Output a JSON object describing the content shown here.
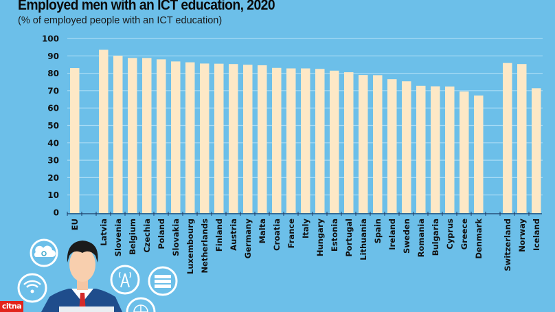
{
  "chart_data": {
    "type": "bar",
    "title": "Employed men with an ICT education, 2020",
    "subtitle": "(% of employed people with an ICT education)",
    "xlabel": "",
    "ylabel": "",
    "ylim": [
      0,
      100
    ],
    "yticks": [
      "0",
      "10",
      "20",
      "30",
      "40",
      "50",
      "60",
      "70",
      "80",
      "90",
      "100"
    ],
    "grid": true,
    "groups": [
      {
        "categories": [
          "EU"
        ],
        "values": [
          83
        ]
      },
      {
        "categories": [
          "Latvia",
          "Slovenia",
          "Belgium",
          "Czechia",
          "Poland",
          "Slovakia",
          "Luxembourg",
          "Netherlands",
          "Finland",
          "Austria",
          "Germany",
          "Malta",
          "Croatia",
          "France",
          "Italy",
          "Hungary",
          "Estonia",
          "Portugal",
          "Lithuania",
          "Spain",
          "Ireland",
          "Sweden",
          "Romania",
          "Bulgaria",
          "Cyprus",
          "Greece",
          "Denmark"
        ],
        "values": [
          93.5,
          90.1,
          88.8,
          88.8,
          88.0,
          86.8,
          86.3,
          85.6,
          85.5,
          85.3,
          84.9,
          84.6,
          83.1,
          82.8,
          82.8,
          82.5,
          81.5,
          80.6,
          79.0,
          78.9,
          76.6,
          75.4,
          72.8,
          72.5,
          72.4,
          69.5,
          67.2
        ]
      },
      {
        "categories": [
          "Switzerland",
          "Norway",
          "Iceland"
        ],
        "values": [
          85.9,
          85.3,
          71.4
        ]
      }
    ],
    "colors": {
      "background": "#6cbfe9",
      "bar": "#fde8c6",
      "grid": "#a9dcf5",
      "axis": "#1a3a66"
    }
  },
  "watermark": "citna",
  "illustration": {
    "icons": [
      "cloud-sync-icon",
      "wifi-icon",
      "antenna-tower-icon",
      "server-icon",
      "globe-icon"
    ]
  }
}
